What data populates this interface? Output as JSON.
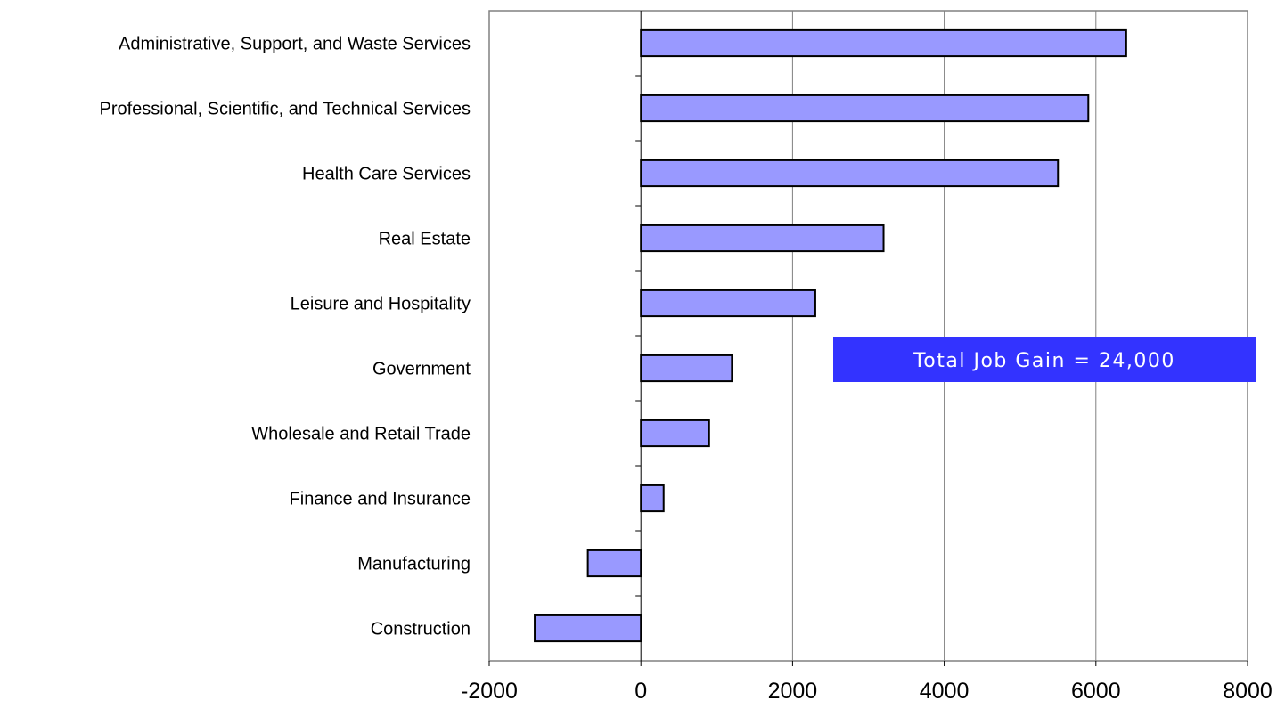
{
  "chart_data": {
    "type": "bar",
    "orientation": "horizontal",
    "title": "",
    "xlabel": "",
    "ylabel": "",
    "categories": [
      "Administrative, Support, and Waste Services",
      "Professional, Scientific, and Technical Services",
      "Health Care Services",
      "Real Estate",
      "Leisure and Hospitality",
      "Government",
      "Wholesale and Retail Trade",
      "Finance and Insurance",
      "Manufacturing",
      "Construction"
    ],
    "values": [
      6400,
      5900,
      5500,
      3200,
      2300,
      1200,
      900,
      300,
      -700,
      -1400
    ],
    "xlim": [
      -2000,
      8000
    ],
    "xticks": [
      -2000,
      0,
      2000,
      4000,
      6000,
      8000
    ],
    "xtick_labels": [
      "-2000",
      "0",
      "2000",
      "4000",
      "6000",
      "8000"
    ],
    "grid": "vertical",
    "legend": "none",
    "annotation": {
      "text": "Total Job Gain = 24,000",
      "background_color": "#3333ff",
      "text_color": "#ffffff"
    },
    "colors": {
      "bar_fill": "#9999ff",
      "bar_stroke": "#000000",
      "grid": "#808080",
      "frame": "#808080"
    }
  }
}
